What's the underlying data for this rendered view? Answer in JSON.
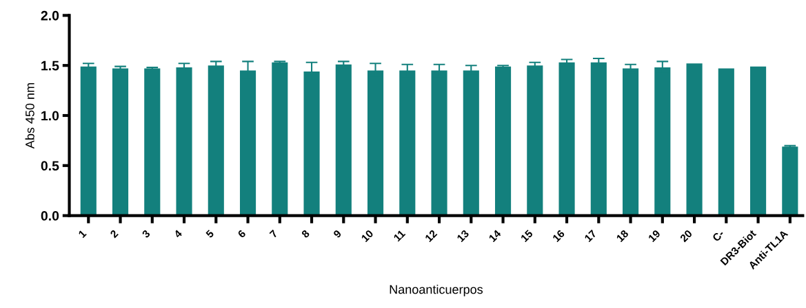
{
  "chart_data": {
    "type": "bar",
    "xlabel": "Nanoanticuerpos",
    "ylabel": "Abs 450 nm",
    "categories": [
      "1",
      "2",
      "3",
      "4",
      "5",
      "6",
      "7",
      "8",
      "9",
      "10",
      "11",
      "12",
      "13",
      "14",
      "15",
      "16",
      "17",
      "18",
      "19",
      "20",
      "C-",
      "DR3-Biot",
      "Anti-TL1A"
    ],
    "values": [
      1.49,
      1.47,
      1.47,
      1.48,
      1.5,
      1.45,
      1.53,
      1.44,
      1.51,
      1.45,
      1.45,
      1.45,
      1.45,
      1.49,
      1.5,
      1.53,
      1.53,
      1.47,
      1.48,
      1.52,
      1.47,
      1.49,
      0.69
    ],
    "errors": [
      0.03,
      0.02,
      0.01,
      0.04,
      0.04,
      0.09,
      0.01,
      0.09,
      0.03,
      0.07,
      0.06,
      0.06,
      0.05,
      0.01,
      0.03,
      0.03,
      0.04,
      0.04,
      0.06,
      null,
      null,
      null,
      0.01
    ],
    "color": "#13807d",
    "ylim": [
      0,
      2
    ],
    "yticks": [
      {
        "value": 0,
        "label": "0.0"
      },
      {
        "value": 0.5,
        "label": "0.5"
      },
      {
        "value": 1,
        "label": "1.0"
      },
      {
        "value": 1.5,
        "label": "1.5"
      },
      {
        "value": 2,
        "label": "2.0"
      }
    ],
    "grid": false
  }
}
